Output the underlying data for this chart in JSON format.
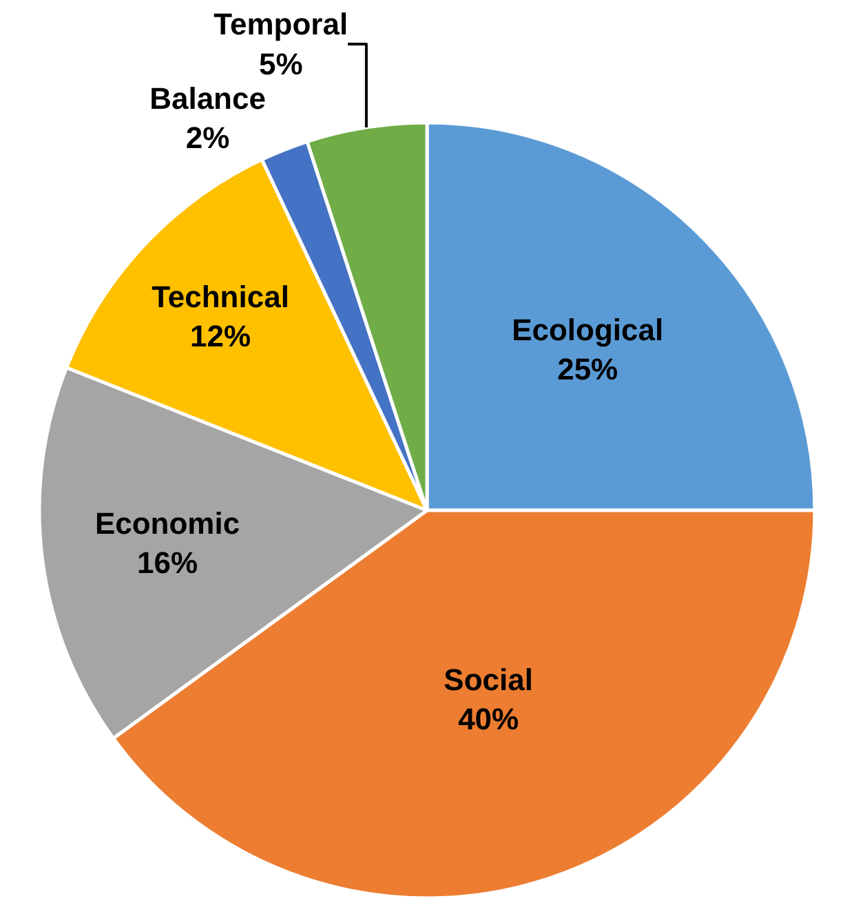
{
  "chart_data": {
    "type": "pie",
    "categories": [
      "Ecological",
      "Social",
      "Economic",
      "Technical",
      "Balance",
      "Temporal"
    ],
    "values": [
      25,
      40,
      16,
      12,
      2,
      5
    ],
    "value_labels": [
      "25%",
      "40%",
      "16%",
      "12%",
      "2%",
      "5%"
    ],
    "colors": [
      "#5b9bd5",
      "#ed7d31",
      "#a5a5a5",
      "#ffc000",
      "#4472c4",
      "#70ad47"
    ],
    "legend": false
  }
}
